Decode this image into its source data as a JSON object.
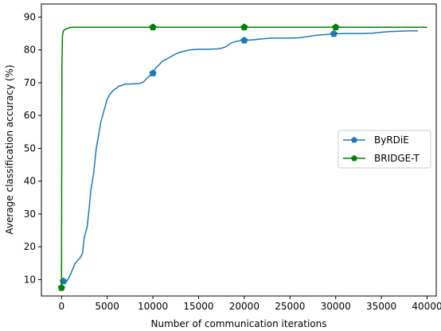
{
  "chart_data": {
    "type": "line",
    "xlabel": "Number of communication iterations",
    "ylabel": "Average classification accuracy (%)",
    "xlim": [
      -2200,
      41000
    ],
    "ylim": [
      5,
      94
    ],
    "xticks": [
      0,
      5000,
      10000,
      15000,
      20000,
      25000,
      30000,
      35000,
      40000
    ],
    "yticks": [
      10,
      20,
      30,
      40,
      50,
      60,
      70,
      80,
      90
    ],
    "grid": false,
    "legend_position": "center-right",
    "series": [
      {
        "name": "ByRDiE",
        "color": "#1f77b4",
        "marker": "pentagon",
        "x": [
          0,
          200,
          500,
          800,
          1200,
          1500,
          2000,
          2300,
          2500,
          2800,
          3000,
          3200,
          3500,
          3800,
          4000,
          4300,
          4600,
          5000,
          5300,
          5700,
          6000,
          6300,
          6700,
          7000,
          7500,
          8000,
          8500,
          9000,
          9500,
          10000,
          10300,
          10700,
          11000,
          11500,
          12000,
          12500,
          13000,
          14000,
          15000,
          16000,
          17000,
          17500,
          18000,
          18500,
          19000,
          19500,
          20000,
          21000,
          22000,
          23000,
          24000,
          25000,
          26000,
          27000,
          28000,
          29000,
          30000,
          31000,
          32000,
          33000,
          34000,
          35000,
          36000,
          37000,
          38000,
          39000
        ],
        "y": [
          9.5,
          9.5,
          9.2,
          10.5,
          13,
          15,
          16.5,
          18,
          23,
          26,
          31,
          37,
          42,
          50,
          53,
          58,
          61,
          65,
          66.5,
          67.8,
          68.3,
          69,
          69.3,
          69.6,
          69.6,
          69.7,
          69.7,
          70.3,
          71.8,
          72.9,
          74.5,
          75.5,
          76.5,
          77.2,
          78,
          78.8,
          79.3,
          80,
          80.2,
          80.2,
          80.3,
          80.5,
          81,
          82,
          82.5,
          82.8,
          82.9,
          83.1,
          83.4,
          83.6,
          83.6,
          83.6,
          83.7,
          84.1,
          84.5,
          84.7,
          84.9,
          85,
          85,
          85,
          85.1,
          85.4,
          85.6,
          85.7,
          85.8,
          85.8
        ],
        "markers_at": [
          [
            200,
            9.5
          ],
          [
            10000,
            72.9
          ],
          [
            20000,
            82.9
          ],
          [
            29800,
            84.9
          ]
        ]
      },
      {
        "name": "BRIDGE-T",
        "color": "#008000",
        "marker": "pentagon",
        "x": [
          0,
          20,
          50,
          100,
          200,
          400,
          700,
          1000,
          1500,
          2000,
          5000,
          10000,
          20000,
          30000,
          40000
        ],
        "y": [
          7.5,
          40,
          75,
          84,
          85.8,
          86.3,
          86.6,
          86.9,
          86.9,
          86.9,
          86.9,
          86.9,
          86.9,
          86.9,
          86.9
        ],
        "markers_at": [
          [
            0,
            7.5
          ],
          [
            10000,
            86.9
          ],
          [
            20000,
            86.9
          ],
          [
            30000,
            86.9
          ]
        ]
      }
    ]
  }
}
